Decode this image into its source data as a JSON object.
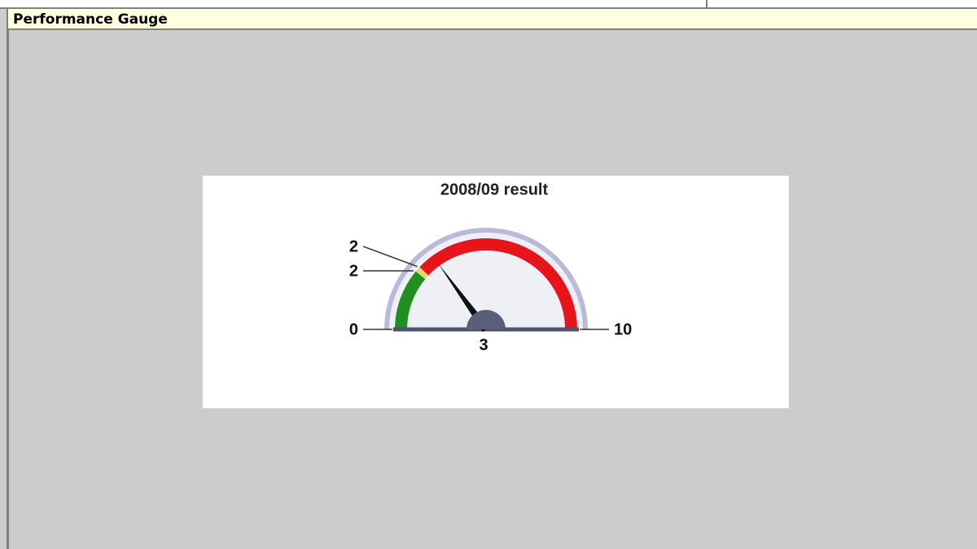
{
  "panel": {
    "title": "Performance Gauge"
  },
  "chart_data": {
    "type": "gauge",
    "title": "2008/09 result",
    "value": 3,
    "ylim": [
      0,
      10
    ],
    "yticks": [
      0,
      {
        "value": 2.2,
        "label": "2"
      },
      {
        "value": 2.4,
        "label": "2"
      },
      10
    ],
    "bands": [
      {
        "from": 0,
        "to": 2.2,
        "color": "#1f8f1f"
      },
      {
        "from": 2.2,
        "to": 2.4,
        "color": "#e8d86a"
      },
      {
        "from": 2.4,
        "to": 10,
        "color": "#e8141c"
      }
    ],
    "needle_color": "#111111"
  }
}
